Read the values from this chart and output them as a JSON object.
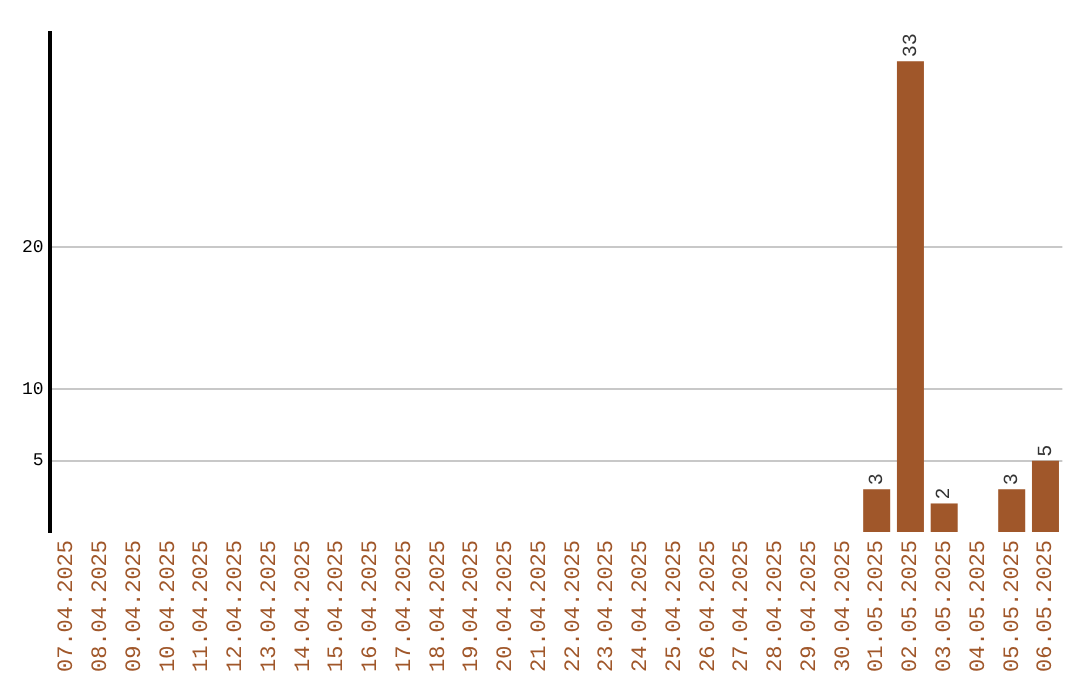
{
  "chart_data": {
    "type": "bar",
    "categories": [
      "07.04.2025",
      "08.04.2025",
      "09.04.2025",
      "10.04.2025",
      "11.04.2025",
      "12.04.2025",
      "13.04.2025",
      "14.04.2025",
      "15.04.2025",
      "16.04.2025",
      "17.04.2025",
      "18.04.2025",
      "19.04.2025",
      "20.04.2025",
      "21.04.2025",
      "22.04.2025",
      "23.04.2025",
      "24.04.2025",
      "25.04.2025",
      "26.04.2025",
      "27.04.2025",
      "28.04.2025",
      "29.04.2025",
      "30.04.2025",
      "01.05.2025",
      "02.05.2025",
      "03.05.2025",
      "04.05.2025",
      "05.05.2025",
      "06.05.2025"
    ],
    "values": [
      0,
      0,
      0,
      0,
      0,
      0,
      0,
      0,
      0,
      0,
      0,
      0,
      0,
      0,
      0,
      0,
      0,
      0,
      0,
      0,
      0,
      0,
      0,
      0,
      3,
      33,
      2,
      0,
      3,
      5
    ],
    "value_labels": [
      null,
      null,
      null,
      null,
      null,
      null,
      null,
      null,
      null,
      null,
      null,
      null,
      null,
      null,
      null,
      null,
      null,
      null,
      null,
      null,
      null,
      null,
      null,
      null,
      "3",
      "33",
      "2",
      null,
      "3",
      "5"
    ],
    "color": "#a0572a",
    "ylim": [
      0,
      35
    ],
    "yticks": [
      5,
      10,
      20
    ],
    "grid": "y",
    "legend": false
  }
}
